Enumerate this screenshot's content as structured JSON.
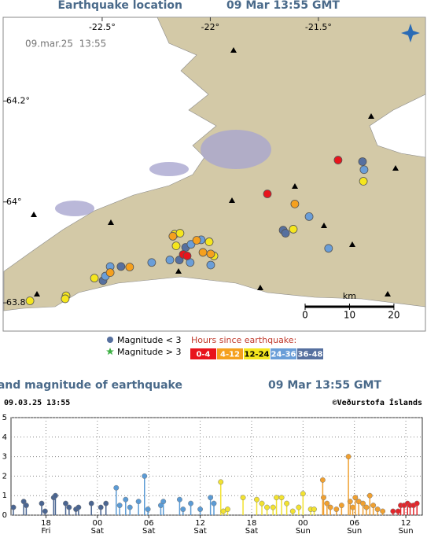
{
  "map": {
    "title": "Earthquake location",
    "time": "09 Mar 13:55 GMT",
    "stamp": "09.mar.25  13:55",
    "xlim": [
      -22.958,
      -21.005
    ],
    "ylim": [
      63.744,
      64.366
    ],
    "xticks": [
      {
        "value": -22.5,
        "label": "-22.5°"
      },
      {
        "value": -22,
        "label": "-22°"
      },
      {
        "value": -21.5,
        "label": "-21.5°"
      }
    ],
    "yticks": [
      {
        "value": 64.2,
        "label": "64.2°"
      },
      {
        "value": 64,
        "label": "64°"
      },
      {
        "value": 63.8,
        "label": "63.8°"
      }
    ],
    "scale_bar": {
      "unit": "km",
      "ticks": [
        0,
        10,
        20
      ]
    },
    "magnitude_legend": [
      "Magnitude < 3",
      "Magnitude > 3"
    ],
    "hours_title": "Hours since earthquake:",
    "hours": [
      {
        "label": "0-4",
        "color": "#e8141c",
        "lon": [
          -21.409,
          -21.736,
          -22.125,
          -22.107
        ],
        "lat": [
          64.083,
          64.016,
          63.896,
          63.893
        ]
      },
      {
        "label": "4-12",
        "color": "#f5a01e",
        "lon": [
          -21.609,
          -22.173,
          -22.063,
          -22.034,
          -21.998,
          -22.373,
          -22.463
        ],
        "lat": [
          63.996,
          63.932,
          63.924,
          63.9,
          63.897,
          63.871,
          63.86
        ]
      },
      {
        "label": "12-24",
        "color": "#f5e61e",
        "lon": [
          -21.292,
          -21.616,
          -22.165,
          -22.14,
          -22.005,
          -21.983,
          -22.158,
          -22.536,
          -22.667,
          -22.671,
          -22.834
        ],
        "lat": [
          64.041,
          63.946,
          63.936,
          63.938,
          63.921,
          63.893,
          63.913,
          63.849,
          63.814,
          63.808,
          63.804
        ]
      },
      {
        "label": "24-36",
        "color": "#6a9ed8",
        "lon": [
          -21.289,
          -21.543,
          -21.453,
          -22.089,
          -22.042,
          -22.093,
          -21.998,
          -22.187,
          -22.271,
          -22.463,
          -22.485
        ],
        "lat": [
          64.064,
          63.971,
          63.908,
          63.916,
          63.925,
          63.88,
          63.875,
          63.885,
          63.88,
          63.872,
          63.853
        ]
      },
      {
        "label": "36-48",
        "color": "#56709f",
        "lon": [
          -21.296,
          -21.663,
          -21.652,
          -22.114,
          -22.143,
          -22.496,
          -22.413
        ],
        "lat": [
          64.08,
          63.944,
          63.938,
          63.91,
          63.885,
          63.844,
          63.872
        ]
      }
    ]
  },
  "chart_data": {
    "type": "stem",
    "title": "Time and magnitude of earthquake",
    "time": "09 Mar 13:55 GMT",
    "stamp": "09.03.25 13:55",
    "credit": "©Veðurstofa Íslands",
    "xlim": [
      13.92,
      61.92
    ],
    "ylim": [
      0,
      5
    ],
    "yticks": [
      0,
      1,
      2,
      3,
      4,
      5
    ],
    "grid": true,
    "xticks": [
      {
        "value": 18,
        "label": "18",
        "day": "Fri"
      },
      {
        "value": 24,
        "label": "00",
        "day": "Sat"
      },
      {
        "value": 30,
        "label": "06",
        "day": "Sat"
      },
      {
        "value": 36,
        "label": "12",
        "day": "Sat"
      },
      {
        "value": 42,
        "label": "18",
        "day": "Sat"
      },
      {
        "value": 48,
        "label": "00",
        "day": "Sun"
      },
      {
        "value": 54,
        "label": "06",
        "day": "Sun"
      },
      {
        "value": 60,
        "label": "12",
        "day": "Sun"
      }
    ],
    "series": [
      {
        "color": "#4a6591",
        "x": [
          14.2,
          15.4,
          15.7,
          17.5,
          17.9,
          18.9,
          19.1,
          20.3,
          20.7,
          21.5,
          21.8,
          23.3,
          24.4,
          25.0
        ],
        "values": [
          0.4,
          0.7,
          0.5,
          0.6,
          0.2,
          0.9,
          1.0,
          0.6,
          0.4,
          0.3,
          0.4,
          0.6,
          0.4,
          0.6
        ]
      },
      {
        "color": "#5b9bd5",
        "x": [
          26.2,
          26.6,
          27.3,
          27.8,
          28.8,
          29.5,
          29.9,
          31.4,
          31.7,
          33.6,
          34.0,
          34.9,
          36.0,
          37.2,
          37.6
        ],
        "values": [
          1.4,
          0.5,
          0.8,
          0.4,
          0.7,
          2.0,
          0.3,
          0.5,
          0.7,
          0.8,
          0.3,
          0.6,
          0.3,
          0.9,
          0.6
        ]
      },
      {
        "color": "#f2e230",
        "x": [
          38.4,
          38.7,
          39.2,
          41.0,
          42.6,
          43.2,
          43.8,
          44.5,
          44.9,
          45.5,
          46.1,
          46.8,
          47.5,
          48.0,
          48.9,
          49.3
        ],
        "values": [
          1.7,
          0.2,
          0.3,
          0.9,
          0.8,
          0.6,
          0.4,
          0.4,
          0.9,
          0.9,
          0.6,
          0.2,
          0.4,
          1.1,
          0.3,
          0.3
        ]
      },
      {
        "color": "#f0a030",
        "x": [
          50.3,
          50.4,
          50.8,
          51.2,
          51.9,
          52.5,
          53.3,
          53.5,
          53.8,
          54.1,
          54.5,
          55.0,
          55.4,
          55.8,
          56.2,
          56.7,
          57.3
        ],
        "values": [
          1.8,
          0.9,
          0.6,
          0.4,
          0.3,
          0.5,
          3.0,
          0.7,
          0.4,
          0.9,
          0.7,
          0.6,
          0.4,
          1.0,
          0.5,
          0.3,
          0.2
        ]
      },
      {
        "color": "#e3262b",
        "x": [
          58.5,
          59.1,
          59.4,
          59.8,
          60.2,
          60.5,
          60.9,
          61.3
        ],
        "values": [
          0.2,
          0.2,
          0.5,
          0.5,
          0.6,
          0.5,
          0.5,
          0.6
        ]
      }
    ]
  }
}
